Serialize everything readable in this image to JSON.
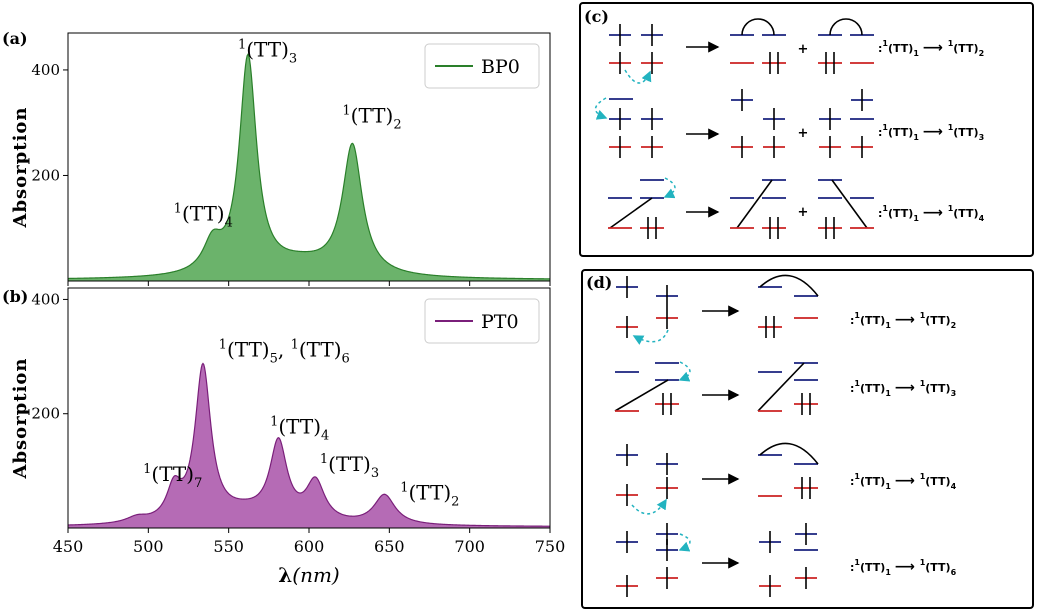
{
  "panels": {
    "a": {
      "tag": "(a)"
    },
    "b": {
      "tag": "(b)"
    },
    "c": {
      "tag": "(c)"
    },
    "d": {
      "tag": "(d)"
    }
  },
  "chart_data": [
    {
      "type": "area",
      "id": "a",
      "title": "",
      "xlabel": "",
      "ylabel": "Absorption",
      "xlim": [
        450,
        750
      ],
      "ylim": [
        0,
        470
      ],
      "yticks": [
        200,
        400
      ],
      "legend": {
        "label": "BP0",
        "placement": "top-right"
      },
      "colors": {
        "line": "#2a7f2a",
        "fill": "#6bb36b"
      },
      "baseline": 2,
      "peaks": [
        {
          "x": 540,
          "h": 55,
          "w": 7
        },
        {
          "x": 562,
          "h": 410,
          "w": 6.5
        },
        {
          "x": 627,
          "h": 245,
          "w": 7.5
        },
        {
          "x": 595,
          "h": 25,
          "w": 25
        }
      ],
      "annotations": [
        {
          "sup": "1",
          "base": "(TT)",
          "sub": "3",
          "x": 562,
          "y": 425
        },
        {
          "sup": "1",
          "base": "(TT)",
          "sub": "2",
          "x": 627,
          "y": 300
        },
        {
          "sup": "1",
          "base": "(TT)",
          "sub": "4",
          "x": 522,
          "y": 115
        }
      ]
    },
    {
      "type": "area",
      "id": "b",
      "title": "",
      "xlabel": "λ(nm)",
      "ylabel": "Absorption",
      "xlim": [
        450,
        750
      ],
      "ylim": [
        0,
        420
      ],
      "yticks": [
        200,
        400
      ],
      "xticks": [
        450,
        500,
        550,
        600,
        650,
        700,
        750
      ],
      "legend": {
        "label": "PT0",
        "placement": "top-right"
      },
      "colors": {
        "line": "#7a1f7a",
        "fill": "#b56bb5"
      },
      "baseline": 2,
      "peaks": [
        {
          "x": 493,
          "h": 10,
          "w": 8
        },
        {
          "x": 516,
          "h": 55,
          "w": 5.5
        },
        {
          "x": 534,
          "h": 270,
          "w": 6
        },
        {
          "x": 581,
          "h": 135,
          "w": 6.5
        },
        {
          "x": 604,
          "h": 70,
          "w": 7
        },
        {
          "x": 647,
          "h": 52,
          "w": 8
        },
        {
          "x": 560,
          "h": 20,
          "w": 20
        }
      ],
      "annotations": [
        {
          "sup": "1",
          "base": "(TT)",
          "sub": "5",
          "x": 550,
          "y": 300,
          "tail": {
            "sep": ",",
            "sup": "1",
            "base": "(TT)",
            "sub": "6"
          }
        },
        {
          "sup": "1",
          "base": "(TT)",
          "sub": "4",
          "x": 582,
          "y": 165
        },
        {
          "sup": "1",
          "base": "(TT)",
          "sub": "3",
          "x": 613,
          "y": 100
        },
        {
          "sup": "1",
          "base": "(TT)",
          "sub": "7",
          "x": 503,
          "y": 82
        },
        {
          "sup": "1",
          "base": "(TT)",
          "sub": "2",
          "x": 663,
          "y": 50
        }
      ]
    }
  ],
  "diagram_c": {
    "rows": [
      {
        "label": ":¹(TT)₁ → ¹(TT)₂",
        "start": "1",
        "end": "2"
      },
      {
        "label": ":¹(TT)₁ → ¹(TT)₃",
        "start": "1",
        "end": "3"
      },
      {
        "label": ":¹(TT)₁ → ¹(TT)₄",
        "start": "1",
        "end": "4"
      }
    ],
    "plus": "+"
  },
  "diagram_d": {
    "rows": [
      {
        "label": ":¹(TT)₁ → ¹(TT)₂",
        "start": "1",
        "end": "2"
      },
      {
        "label": ":¹(TT)₁ → ¹(TT)₃",
        "start": "1",
        "end": "3"
      },
      {
        "label": ":¹(TT)₁ → ¹(TT)₄",
        "start": "1",
        "end": "4"
      },
      {
        "label": ":¹(TT)₁ → ¹(TT)₆",
        "start": "1",
        "end": "6"
      }
    ]
  },
  "colors": {
    "occupied": "#cc2222",
    "virtual": "#1a237e",
    "arrow": "#22b3c0"
  }
}
